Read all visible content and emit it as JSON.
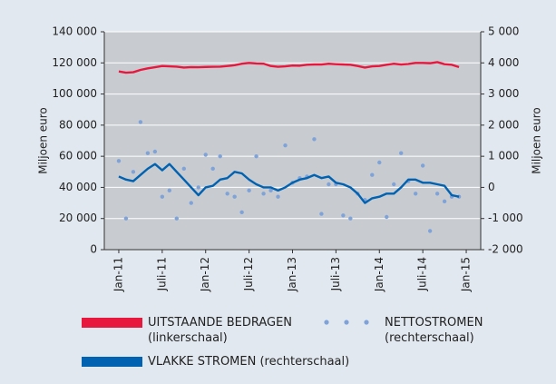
{
  "chart_data": {
    "type": "line",
    "ylabel": "Miljoen euro",
    "y2label": "Miljoen euro",
    "x": [
      "2011-01",
      "2011-02",
      "2011-03",
      "2011-04",
      "2011-05",
      "2011-06",
      "2011-07",
      "2011-08",
      "2011-09",
      "2011-10",
      "2011-11",
      "2011-12",
      "2012-01",
      "2012-02",
      "2012-03",
      "2012-04",
      "2012-05",
      "2012-06",
      "2012-07",
      "2012-08",
      "2012-09",
      "2012-10",
      "2012-11",
      "2012-12",
      "2013-01",
      "2013-02",
      "2013-03",
      "2013-04",
      "2013-05",
      "2013-06",
      "2013-07",
      "2013-08",
      "2013-09",
      "2013-10",
      "2013-11",
      "2013-12",
      "2014-01",
      "2014-02",
      "2014-03",
      "2014-04",
      "2014-05",
      "2014-06",
      "2014-07",
      "2014-08",
      "2014-09",
      "2014-10",
      "2014-11",
      "2014-12"
    ],
    "xlim": [
      "2010-11",
      "2015-03"
    ],
    "xticks": [
      {
        "value": "2011-01",
        "label": "Jan-11"
      },
      {
        "value": "2011-07",
        "label": "Juli-11"
      },
      {
        "value": "2012-01",
        "label": "Jan-12"
      },
      {
        "value": "2012-07",
        "label": "Juli-12"
      },
      {
        "value": "2013-01",
        "label": "Jan-13"
      },
      {
        "value": "2013-07",
        "label": "Juli-13"
      },
      {
        "value": "2014-01",
        "label": "Jan-14"
      },
      {
        "value": "2014-07",
        "label": "Juli-14"
      },
      {
        "value": "2015-01",
        "label": "Jan-15"
      }
    ],
    "ylim": [
      0,
      140000
    ],
    "yticks": [
      0,
      {
        "value": 20000,
        "label": "20 000"
      },
      {
        "value": 40000,
        "label": "40 000"
      },
      {
        "value": 60000,
        "label": "60 000"
      },
      {
        "value": 80000,
        "label": "80 000"
      },
      {
        "value": 100000,
        "label": "100 000"
      },
      {
        "value": 120000,
        "label": "120 000"
      },
      {
        "value": 140000,
        "label": "140 000"
      }
    ],
    "y2lim": [
      -2000,
      5000
    ],
    "y2ticks": [
      {
        "value": -2000,
        "label": "-2 000"
      },
      {
        "value": -1000,
        "label": "-1 000"
      },
      0,
      {
        "value": 1000,
        "label": "1 000"
      },
      {
        "value": 2000,
        "label": "2 000"
      },
      {
        "value": 3000,
        "label": "3 000"
      },
      {
        "value": 4000,
        "label": "4 000"
      },
      {
        "value": 5000,
        "label": "5 000"
      }
    ],
    "grid": true,
    "series": [
      {
        "name": "UITSTAANDE BEDRAGEN (linkerschaal)",
        "color": "#e8173d",
        "type": "line",
        "values": [
          114500,
          113700,
          114000,
          115500,
          116500,
          117200,
          118000,
          117800,
          117600,
          117000,
          117300,
          117200,
          117400,
          117500,
          117600,
          118000,
          118500,
          119500,
          120000,
          119600,
          119500,
          118000,
          117500,
          117800,
          118300,
          118200,
          118800,
          119000,
          119000,
          119500,
          119200,
          119000,
          118800,
          118000,
          117000,
          117800,
          118000,
          118800,
          119500,
          119000,
          119300,
          120000,
          120000,
          119800,
          120500,
          119200,
          118800,
          117300
        ]
      },
      {
        "name": "NETTOSTROMEN (rechterschaal)",
        "color": "#7fa3d8",
        "type": "scatter",
        "axis": "y2",
        "values": [
          850,
          -1000,
          500,
          2100,
          1100,
          1150,
          -300,
          -100,
          -1000,
          600,
          -500,
          0,
          1050,
          600,
          1000,
          -200,
          -300,
          -800,
          -100,
          1000,
          -200,
          -100,
          -300,
          1350,
          150,
          300,
          350,
          1550,
          -850,
          100,
          100,
          -900,
          -1000,
          -200,
          -400,
          400,
          800,
          -950,
          100,
          1100,
          200,
          -200,
          700,
          -1400,
          -200,
          -450,
          -300,
          -300
        ]
      },
      {
        "name": "VLAKKE STROMEN (rechterschaal)",
        "color": "#0062b1",
        "type": "line",
        "axis": "y2",
        "values": [
          350,
          250,
          200,
          400,
          600,
          750,
          550,
          750,
          500,
          250,
          0,
          -250,
          0,
          50,
          250,
          300,
          500,
          450,
          250,
          100,
          0,
          0,
          -100,
          0,
          150,
          250,
          300,
          400,
          300,
          350,
          150,
          100,
          0,
          -200,
          -500,
          -350,
          -300,
          -200,
          -200,
          0,
          250,
          250,
          150,
          150,
          100,
          50,
          -250,
          -300
        ]
      }
    ]
  }
}
